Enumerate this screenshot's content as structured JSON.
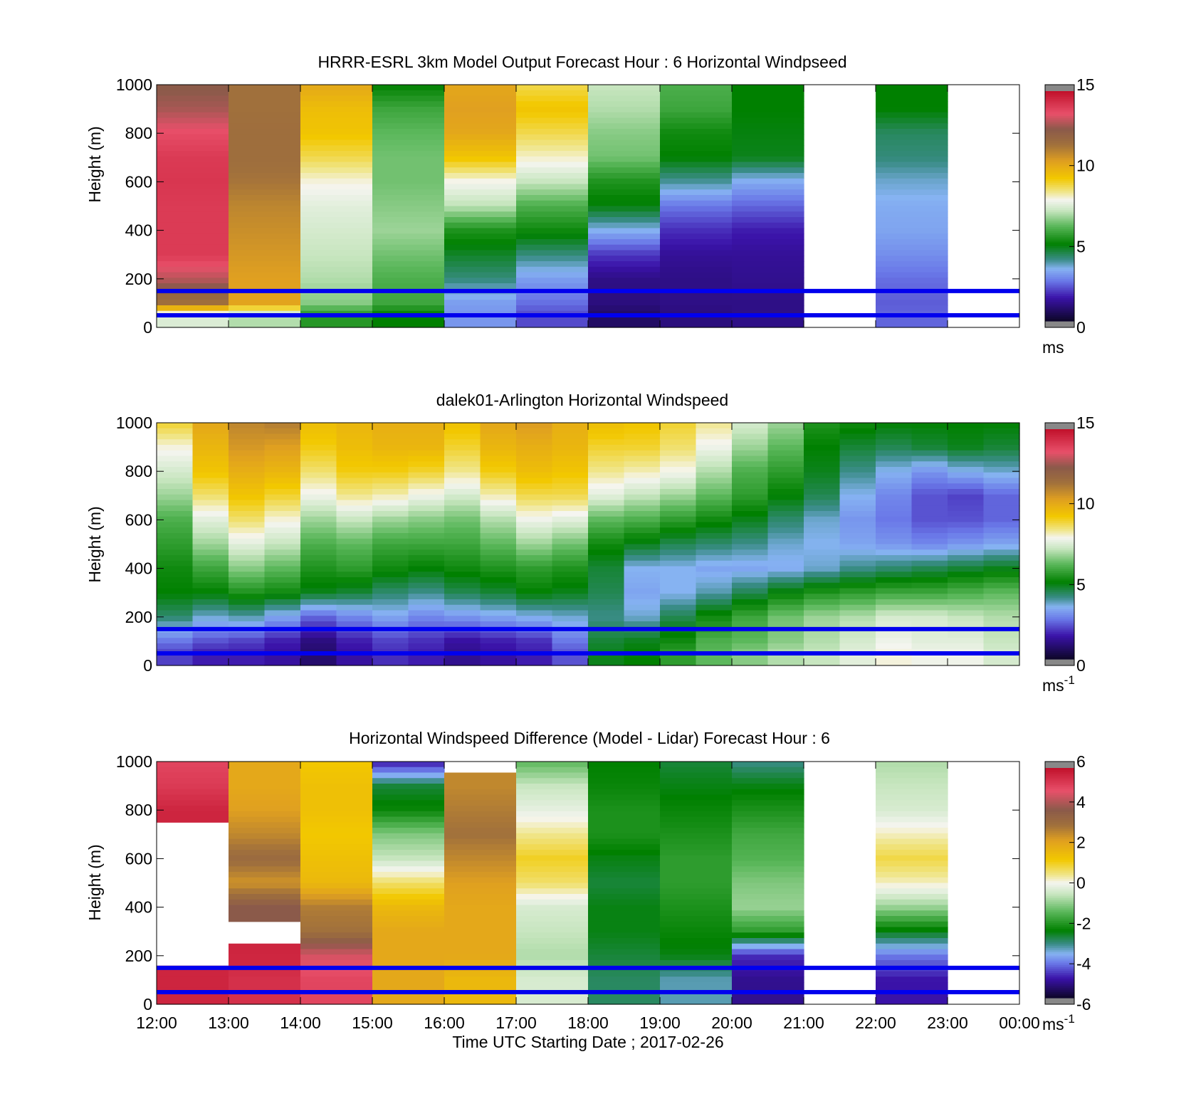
{
  "palette_windspeed": [
    [
      0.0,
      "#0d0628"
    ],
    [
      1.5,
      "#3a12a8"
    ],
    [
      2.6,
      "#6a78e8"
    ],
    [
      3.4,
      "#86b3f2"
    ],
    [
      4.0,
      "#3a8c88"
    ],
    [
      5.0,
      "#008000"
    ],
    [
      6.2,
      "#5cb85c"
    ],
    [
      7.2,
      "#c8e6c0"
    ],
    [
      7.9,
      "#f5f5f0"
    ],
    [
      8.4,
      "#f0e68c"
    ],
    [
      9.3,
      "#f2c800"
    ],
    [
      10.4,
      "#e0a020"
    ],
    [
      11.5,
      "#a0703c"
    ],
    [
      12.5,
      "#8b5a4a"
    ],
    [
      13.5,
      "#e8506a"
    ],
    [
      15.0,
      "#c0102a"
    ]
  ],
  "palette_difference": [
    [
      -6.0,
      "#0d0628"
    ],
    [
      -5.0,
      "#3a12a8"
    ],
    [
      -4.2,
      "#6a78e8"
    ],
    [
      -3.7,
      "#86b3f2"
    ],
    [
      -3.2,
      "#3a8c88"
    ],
    [
      -2.5,
      "#008000"
    ],
    [
      -1.5,
      "#5cb85c"
    ],
    [
      -0.6,
      "#c8e6c0"
    ],
    [
      0.0,
      "#f5f5f0"
    ],
    [
      0.4,
      "#f0e68c"
    ],
    [
      1.2,
      "#f2c800"
    ],
    [
      2.2,
      "#e0a020"
    ],
    [
      3.0,
      "#a0703c"
    ],
    [
      3.8,
      "#8b5a4a"
    ],
    [
      4.8,
      "#e8506a"
    ],
    [
      6.0,
      "#c0102a"
    ]
  ],
  "chart_data": [
    {
      "type": "heatmap",
      "title": "HRRR-ESRL 3km Model Output   Forecast Hour : 6 Horizontal Windpseed",
      "xlabel": "",
      "ylabel": "Height (m)",
      "ylim": [
        0,
        1000
      ],
      "yticks": [
        "0",
        "200",
        "400",
        "600",
        "800",
        "1000"
      ],
      "xlim": [
        "12:00",
        "00:00"
      ],
      "x": [
        "12:00",
        "13:00",
        "14:00",
        "15:00",
        "16:00",
        "17:00",
        "18:00",
        "19:00",
        "20:00",
        "21:00",
        "22:00",
        "23:00"
      ],
      "y": [
        1000,
        900,
        800,
        700,
        600,
        500,
        400,
        300,
        200,
        100,
        50
      ],
      "values": [
        [
          12.4,
          11.5,
          10.2,
          5.0,
          10.2,
          8.8,
          7.2,
          6.0,
          5.0,
          null,
          5.0,
          null
        ],
        [
          12.8,
          11.5,
          9.6,
          5.8,
          10.4,
          9.4,
          7.0,
          5.8,
          5.0,
          null,
          5.0,
          null
        ],
        [
          13.6,
          11.6,
          9.4,
          6.2,
          10.2,
          8.8,
          6.6,
          5.2,
          4.9,
          null,
          4.3,
          null
        ],
        [
          14.0,
          11.6,
          8.8,
          6.4,
          9.4,
          8.1,
          6.4,
          5.0,
          4.8,
          null,
          4.1,
          null
        ],
        [
          14.1,
          11.4,
          8.0,
          6.4,
          7.9,
          7.2,
          5.4,
          3.9,
          3.3,
          null,
          3.6,
          null
        ],
        [
          14.0,
          11.0,
          7.6,
          6.6,
          7.1,
          6.0,
          4.9,
          2.6,
          2.4,
          null,
          3.3,
          null
        ],
        [
          14.0,
          10.8,
          7.4,
          6.8,
          5.4,
          5.2,
          3.4,
          1.8,
          1.6,
          null,
          3.2,
          null
        ],
        [
          14.0,
          10.6,
          7.2,
          6.4,
          4.7,
          4.1,
          1.9,
          1.3,
          1.3,
          null,
          2.9,
          null
        ],
        [
          13.0,
          10.4,
          7.0,
          6.0,
          4.1,
          3.1,
          1.1,
          1.1,
          1.2,
          null,
          2.5,
          null
        ],
        [
          11.5,
          10.3,
          6.6,
          5.8,
          3.1,
          2.5,
          1.0,
          1.1,
          1.1,
          null,
          2.3,
          null
        ],
        [
          7.5,
          7.0,
          5.5,
          5.0,
          3.0,
          2.1,
          0.7,
          1.0,
          1.1,
          null,
          2.4,
          null
        ]
      ],
      "reference_lines_m": [
        50,
        150
      ],
      "colorbar": {
        "range": [
          0,
          15
        ],
        "ticks": [
          "0",
          "5",
          "10",
          "15"
        ],
        "unit_label": "ms",
        "unit_exponent": ""
      }
    },
    {
      "type": "heatmap",
      "title": "dalek01-Arlington  Horizontal Windspeed",
      "xlabel": "",
      "ylabel": "Height (m)",
      "ylim": [
        0,
        1000
      ],
      "yticks": [
        "0",
        "200",
        "400",
        "600",
        "800",
        "1000"
      ],
      "xlim": [
        "12:00",
        "00:00"
      ],
      "x": [
        "12:00",
        "12:30",
        "13:00",
        "13:30",
        "14:00",
        "14:30",
        "15:00",
        "15:30",
        "16:00",
        "16:30",
        "17:00",
        "17:30",
        "18:00",
        "18:30",
        "19:00",
        "19:30",
        "20:00",
        "20:30",
        "21:00",
        "21:30",
        "22:00",
        "22:30",
        "23:00",
        "23:30"
      ],
      "y": [
        1000,
        900,
        800,
        700,
        600,
        500,
        400,
        300,
        200,
        100,
        50
      ],
      "values": [
        [
          9.0,
          10.2,
          11.0,
          11.2,
          9.6,
          9.8,
          10.0,
          10.0,
          9.5,
          10.2,
          10.5,
          10.0,
          9.6,
          9.4,
          9.0,
          8.4,
          7.4,
          6.8,
          5.4,
          5.2,
          5.0,
          5.0,
          5.0,
          5.0
        ],
        [
          8.0,
          9.8,
          10.6,
          10.4,
          9.2,
          9.6,
          9.8,
          9.8,
          9.0,
          9.8,
          10.0,
          9.8,
          9.0,
          9.0,
          8.6,
          7.8,
          6.8,
          6.2,
          5.0,
          4.6,
          4.4,
          4.6,
          4.8,
          4.6
        ],
        [
          7.4,
          9.4,
          10.0,
          9.8,
          8.6,
          9.2,
          9.2,
          9.0,
          8.4,
          9.2,
          9.6,
          9.4,
          8.4,
          8.2,
          7.9,
          7.0,
          6.0,
          5.6,
          4.8,
          4.0,
          3.4,
          3.0,
          3.4,
          3.6
        ],
        [
          6.8,
          8.6,
          9.4,
          9.0,
          7.8,
          8.4,
          8.2,
          7.8,
          7.4,
          8.2,
          8.8,
          8.8,
          7.6,
          7.2,
          6.8,
          6.2,
          5.6,
          5.0,
          4.4,
          3.4,
          2.8,
          2.2,
          2.0,
          2.4
        ],
        [
          6.0,
          7.6,
          8.6,
          8.0,
          6.8,
          7.2,
          6.8,
          6.6,
          6.4,
          7.0,
          7.8,
          7.6,
          6.2,
          6.0,
          5.6,
          5.2,
          4.8,
          4.2,
          3.6,
          3.0,
          2.6,
          2.2,
          2.2,
          2.4
        ],
        [
          5.6,
          6.8,
          7.6,
          7.2,
          6.0,
          6.2,
          5.8,
          5.8,
          5.8,
          6.2,
          6.8,
          6.4,
          5.2,
          4.8,
          4.4,
          4.2,
          4.0,
          3.6,
          3.4,
          3.2,
          3.0,
          2.8,
          3.0,
          3.2
        ],
        [
          5.2,
          5.8,
          6.6,
          6.2,
          5.4,
          5.6,
          5.2,
          5.0,
          5.2,
          5.4,
          5.6,
          5.4,
          4.6,
          3.4,
          3.4,
          3.2,
          3.2,
          3.3,
          3.6,
          4.0,
          4.2,
          4.4,
          4.6,
          4.8
        ],
        [
          5.0,
          5.0,
          5.4,
          5.2,
          4.8,
          4.6,
          4.2,
          4.0,
          4.4,
          4.6,
          5.0,
          4.8,
          4.4,
          3.2,
          3.4,
          3.8,
          4.4,
          5.0,
          5.4,
          5.6,
          5.8,
          5.8,
          6.0,
          6.2
        ],
        [
          4.2,
          3.6,
          3.8,
          3.2,
          2.4,
          2.8,
          3.2,
          2.8,
          3.0,
          3.2,
          3.4,
          3.6,
          4.0,
          3.6,
          4.4,
          5.2,
          5.8,
          6.4,
          6.8,
          7.0,
          7.4,
          7.4,
          7.2,
          7.0
        ],
        [
          2.6,
          2.2,
          2.0,
          1.6,
          1.0,
          1.6,
          2.0,
          1.8,
          1.4,
          1.6,
          1.8,
          2.6,
          4.6,
          4.8,
          5.2,
          6.0,
          6.2,
          6.6,
          7.0,
          7.4,
          7.8,
          7.6,
          7.6,
          7.2
        ],
        [
          2.0,
          1.6,
          1.6,
          1.4,
          0.8,
          1.4,
          1.8,
          1.6,
          1.2,
          1.4,
          1.6,
          2.2,
          4.8,
          5.0,
          5.6,
          6.2,
          6.6,
          7.0,
          7.2,
          7.6,
          8.0,
          7.8,
          7.8,
          7.4
        ]
      ],
      "reference_lines_m": [
        50,
        150
      ],
      "colorbar": {
        "range": [
          0,
          15
        ],
        "ticks": [
          "0",
          "5",
          "10",
          "15"
        ],
        "unit_label": "ms",
        "unit_exponent": "-1"
      }
    },
    {
      "type": "heatmap",
      "title": "Horizontal Windspeed Difference (Model - Lidar) Forecast Hour : 6",
      "xlabel": "Time UTC  Starting Date ; 2017-02-26",
      "ylabel": "Height (m)",
      "ylim": [
        0,
        1000
      ],
      "yticks": [
        "0",
        "200",
        "400",
        "600",
        "800",
        "1000"
      ],
      "xlim": [
        "12:00",
        "00:00"
      ],
      "xticks": [
        "12:00",
        "13:00",
        "14:00",
        "15:00",
        "16:00",
        "17:00",
        "18:00",
        "19:00",
        "20:00",
        "21:00",
        "22:00",
        "23:00",
        "00:00"
      ],
      "x": [
        "12:00",
        "13:00",
        "14:00",
        "15:00",
        "16:00",
        "17:00",
        "18:00",
        "19:00",
        "20:00",
        "21:00",
        "22:00",
        "23:00"
      ],
      "y": [
        1000,
        900,
        800,
        700,
        600,
        500,
        400,
        300,
        200,
        100,
        50
      ],
      "values": [
        [
          5.0,
          2.0,
          1.2,
          -5.0,
          null,
          -1.5,
          -2.5,
          -2.8,
          -3.2,
          null,
          -0.8,
          null
        ],
        [
          5.2,
          2.0,
          1.4,
          -2.8,
          2.6,
          -0.6,
          -2.4,
          -2.6,
          -2.6,
          null,
          -0.6,
          null
        ],
        [
          5.6,
          2.2,
          1.4,
          -2.4,
          2.8,
          -0.2,
          -2.2,
          -2.4,
          -2.2,
          null,
          -0.4,
          null
        ],
        [
          null,
          2.6,
          1.2,
          -1.2,
          3.0,
          0.4,
          -2.2,
          -2.2,
          -1.8,
          null,
          0.2,
          null
        ],
        [
          null,
          3.2,
          1.4,
          -0.6,
          2.6,
          1.0,
          -2.6,
          -2.0,
          -1.6,
          null,
          0.8,
          null
        ],
        [
          null,
          2.4,
          1.6,
          0.6,
          2.2,
          0.6,
          -2.8,
          -2.0,
          -1.2,
          null,
          0.2,
          null
        ],
        [
          null,
          3.8,
          2.8,
          1.6,
          2.0,
          -0.4,
          -2.6,
          -2.2,
          -1.0,
          null,
          -1.0,
          null
        ],
        [
          null,
          null,
          3.0,
          2.0,
          2.0,
          -0.6,
          -2.6,
          -2.4,
          -2.0,
          null,
          -2.6,
          null
        ],
        [
          null,
          5.6,
          4.6,
          2.0,
          2.0,
          -0.8,
          -2.8,
          -2.6,
          -4.8,
          null,
          -4.2,
          null
        ],
        [
          5.6,
          5.4,
          5.0,
          2.0,
          1.6,
          -0.4,
          -3.0,
          -3.4,
          -5.2,
          null,
          -5.0,
          null
        ],
        [
          5.6,
          5.4,
          5.0,
          2.0,
          1.6,
          -0.4,
          -3.0,
          -3.4,
          -5.2,
          null,
          -5.0,
          null
        ]
      ],
      "reference_lines_m": [
        50,
        150
      ],
      "colorbar": {
        "range": [
          -6,
          6
        ],
        "ticks": [
          "-6",
          "-4",
          "-2",
          "0",
          "2",
          "4",
          "6"
        ],
        "unit_label": "ms",
        "unit_exponent": "-1"
      }
    }
  ]
}
